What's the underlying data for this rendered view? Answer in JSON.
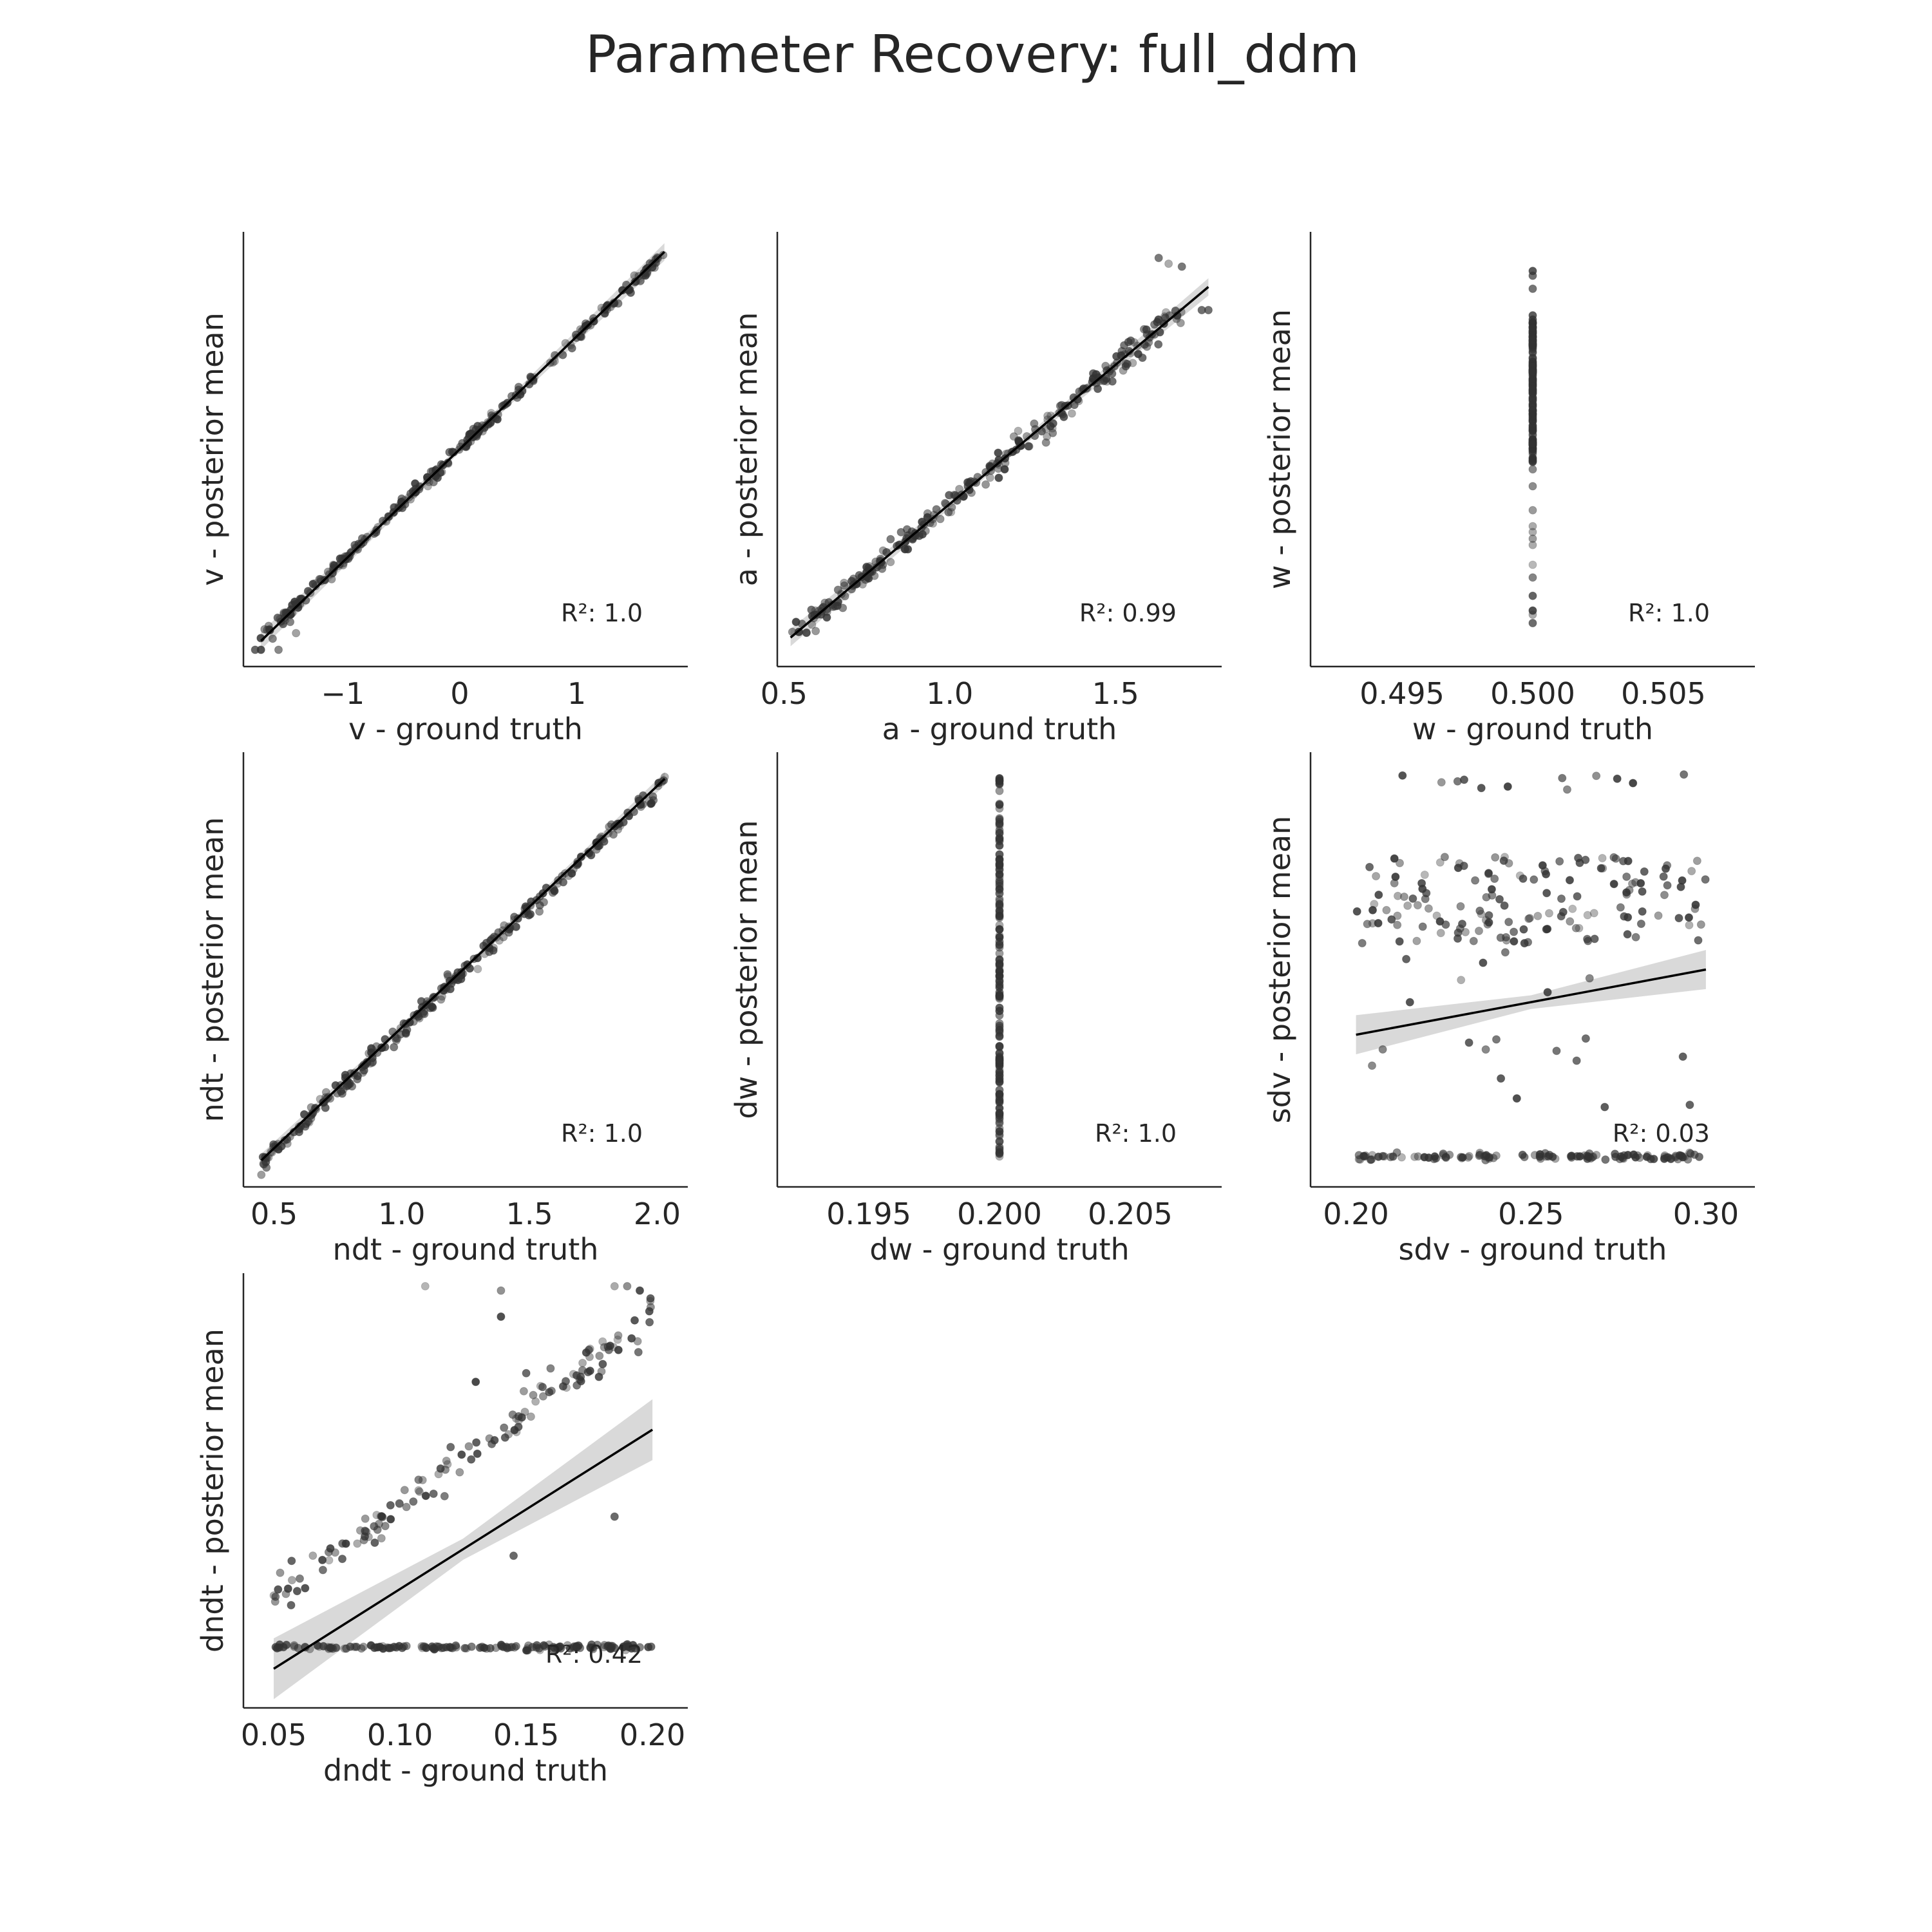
{
  "figure": {
    "title": "Parameter Recovery: full_ddm",
    "colors": {
      "point": "#333333",
      "line": "#000000",
      "band": "#cfcfcf",
      "axis": "#262626"
    }
  },
  "chart_data": [
    {
      "type": "scatter",
      "param": "v",
      "xlabel": "v - ground truth",
      "ylabel": "v - posterior mean",
      "xlim": [
        -1.85,
        1.95
      ],
      "ylim": [
        -1.95,
        1.95
      ],
      "xticks": [
        -1,
        0,
        1
      ],
      "xtick_labels": [
        "−1",
        "0",
        "1"
      ],
      "r2_label": "R²: 1.0",
      "fit": {
        "x0": -1.7,
        "y0": -1.72,
        "x1": 1.75,
        "y1": 1.77,
        "band": 0.02
      },
      "gen": {
        "kind": "linear",
        "xmin": -1.72,
        "xmax": 1.75,
        "n": 260,
        "slope": 1.0,
        "intercept": 0.0,
        "noise": 0.05
      },
      "extra_points": [
        [
          -1.75,
          -1.8
        ],
        [
          -1.7,
          -1.8
        ],
        [
          -1.55,
          -1.8
        ],
        [
          -1.6,
          -1.7
        ],
        [
          -1.4,
          -1.65
        ],
        [
          -1.45,
          -1.55
        ]
      ]
    },
    {
      "type": "scatter",
      "param": "a",
      "xlabel": "a - ground truth",
      "ylabel": "a - posterior mean",
      "xlim": [
        0.48,
        1.82
      ],
      "ylim": [
        0.45,
        1.95
      ],
      "xticks": [
        0.5,
        1.0,
        1.5
      ],
      "xtick_labels": [
        "0.5",
        "1.0",
        "1.5"
      ],
      "r2_label": "R²: 0.99",
      "fit": {
        "x0": 0.52,
        "y0": 0.55,
        "x1": 1.78,
        "y1": 1.76,
        "band": 0.02
      },
      "gen": {
        "kind": "linear",
        "xmin": 0.52,
        "xmax": 1.7,
        "n": 260,
        "slope": 0.96,
        "intercept": 0.05,
        "noise": 0.035
      },
      "extra_points": [
        [
          1.63,
          1.86
        ],
        [
          1.66,
          1.84
        ],
        [
          1.7,
          1.83
        ],
        [
          1.76,
          1.68
        ],
        [
          1.78,
          1.68
        ]
      ]
    },
    {
      "type": "scatter",
      "param": "w",
      "xlabel": "w - ground truth",
      "ylabel": "w - posterior mean",
      "xlim": [
        0.4915,
        0.5085
      ],
      "ylim": [
        0,
        1
      ],
      "xticks": [
        0.495,
        0.5,
        0.505
      ],
      "xtick_labels": [
        "0.495",
        "0.500",
        "0.505"
      ],
      "r2_label": "R²: 1.0",
      "fit": null,
      "gen": {
        "kind": "vertical",
        "x": 0.5,
        "ymin": 0.1,
        "ymax": 0.91,
        "n": 180,
        "cmin": 0.47,
        "cmax": 0.8
      }
    },
    {
      "type": "scatter",
      "param": "ndt",
      "xlabel": "ndt - ground truth",
      "ylabel": "ndt - posterior mean",
      "xlim": [
        0.38,
        2.12
      ],
      "ylim": [
        0.35,
        2.15
      ],
      "xticks": [
        0.5,
        1.0,
        1.5,
        2.0
      ],
      "xtick_labels": [
        "0.5",
        "1.0",
        "1.5",
        "2.0"
      ],
      "r2_label": "R²: 1.0",
      "fit": {
        "x0": 0.45,
        "y0": 0.46,
        "x1": 2.03,
        "y1": 2.04,
        "band": 0.015
      },
      "gen": {
        "kind": "linear",
        "xmin": 0.45,
        "xmax": 2.03,
        "n": 260,
        "slope": 1.0,
        "intercept": 0.0,
        "noise": 0.03
      },
      "extra_points": [
        [
          0.45,
          0.4
        ],
        [
          0.47,
          0.43
        ]
      ]
    },
    {
      "type": "scatter",
      "param": "dw",
      "xlabel": "dw - ground truth",
      "ylabel": "dw - posterior mean",
      "xlim": [
        0.1915,
        0.2085
      ],
      "ylim": [
        0,
        1
      ],
      "xticks": [
        0.195,
        0.2,
        0.205
      ],
      "xtick_labels": [
        "0.195",
        "0.200",
        "0.205"
      ],
      "r2_label": "R²: 1.0",
      "fit": null,
      "gen": {
        "kind": "vertical",
        "x": 0.2,
        "ymin": 0.07,
        "ymax": 0.94,
        "n": 160,
        "cmin": 0.07,
        "cmax": 0.94
      }
    },
    {
      "type": "scatter",
      "param": "sdv",
      "xlabel": "sdv - ground truth",
      "ylabel": "sdv - posterior mean",
      "xlim": [
        0.187,
        0.314
      ],
      "ylim": [
        0.0,
        1.0
      ],
      "xticks": [
        0.2,
        0.25,
        0.3
      ],
      "xtick_labels": [
        "0.20",
        "0.25",
        "0.30"
      ],
      "r2_label": "R²: 0.03",
      "fit": {
        "x0": 0.2,
        "y0": 0.35,
        "x1": 0.3,
        "y1": 0.5,
        "band": 0.045
      },
      "gen": {
        "kind": "sdv",
        "xmin": 0.2,
        "xmax": 0.3,
        "n_cluster": 150,
        "cluster_min": 0.56,
        "cluster_max": 0.76,
        "n_bottom": 110,
        "bottom_y": 0.07,
        "n_top": 12,
        "top_min": 0.91,
        "top_max": 0.95,
        "n_mid": 20,
        "mid_min": 0.18,
        "mid_max": 0.55
      }
    },
    {
      "type": "scatter",
      "param": "dndt",
      "xlabel": "dndt - ground truth",
      "ylabel": "dndt - posterior mean",
      "xlim": [
        0.038,
        0.214
      ],
      "ylim": [
        0.0,
        1.0
      ],
      "xticks": [
        0.05,
        0.1,
        0.15,
        0.2
      ],
      "xtick_labels": [
        "0.05",
        "0.10",
        "0.15",
        "0.20"
      ],
      "r2_label": "R²: 0.42",
      "fit": {
        "x0": 0.05,
        "y0": 0.09,
        "x1": 0.2,
        "y1": 0.64,
        "band": 0.07
      },
      "gen": {
        "kind": "dndt",
        "xmin": 0.05,
        "xmax": 0.2,
        "n_diag": 130,
        "diag_y0": 0.25,
        "diag_y1": 0.9,
        "diag_noise": 0.035,
        "n_bottom": 150,
        "bottom_y": 0.14
      },
      "extra_points": [
        [
          0.11,
          0.97
        ],
        [
          0.14,
          0.96
        ],
        [
          0.185,
          0.97
        ],
        [
          0.19,
          0.97
        ],
        [
          0.195,
          0.96
        ],
        [
          0.14,
          0.9
        ],
        [
          0.15,
          0.77
        ],
        [
          0.13,
          0.75
        ],
        [
          0.185,
          0.44
        ],
        [
          0.145,
          0.35
        ],
        [
          0.09,
          0.38
        ]
      ]
    }
  ]
}
